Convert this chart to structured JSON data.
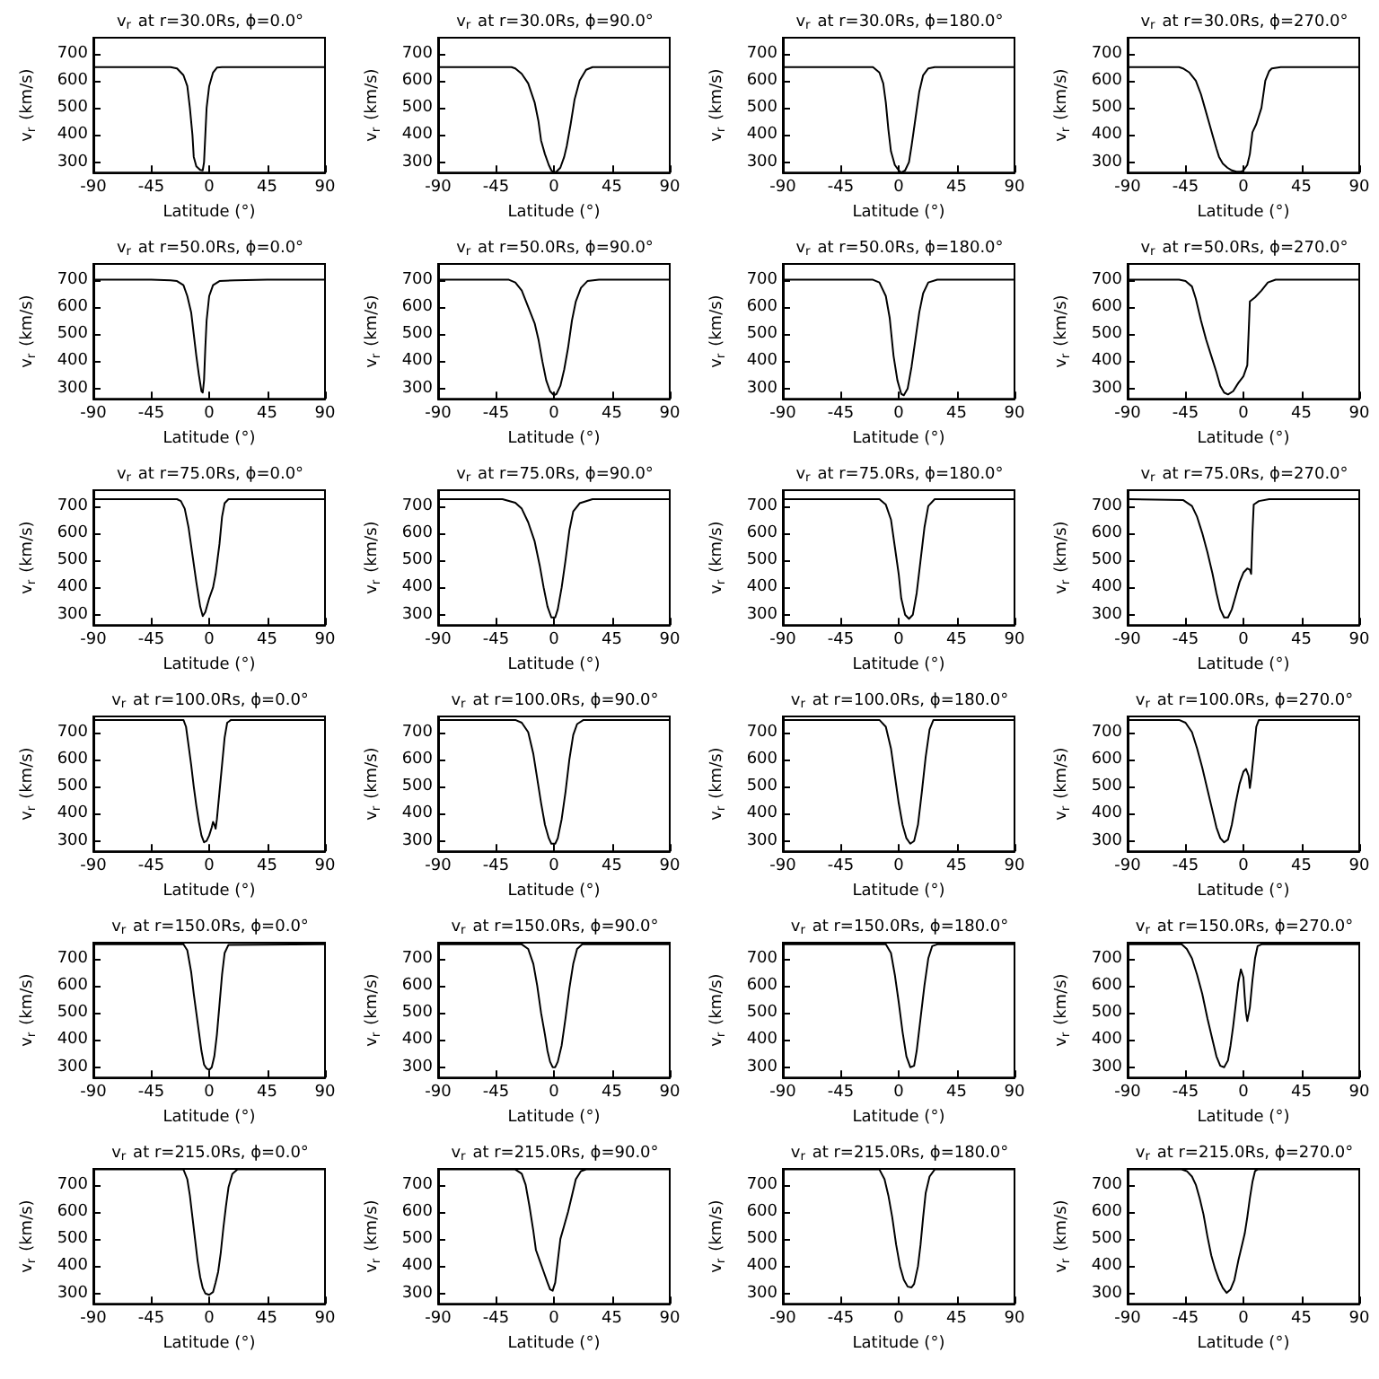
{
  "chart_data": [
    {
      "type": "line",
      "title": "v$_{r}$ at r=30.0Rs, ϕ=0.0°",
      "xlabel": "Latitude (°)",
      "ylabel": "v$_{r}$ (km/s)",
      "color": "#000000",
      "xlim": [
        -90,
        90
      ],
      "xticks": [
        -90,
        -45,
        0,
        45,
        90
      ],
      "ylim": [
        262,
        758
      ],
      "yticks": [
        300,
        400,
        500,
        600,
        700
      ],
      "x": [
        -90,
        -30,
        -25,
        -20,
        -17,
        -15,
        -13,
        -12,
        -10,
        -7,
        -5,
        -4,
        -3,
        -2,
        0,
        3,
        6,
        10,
        90
      ],
      "values": [
        650,
        650,
        645,
        620,
        580,
        500,
        400,
        320,
        285,
        272,
        270,
        300,
        400,
        500,
        580,
        630,
        648,
        650,
        650
      ]
    },
    {
      "type": "line",
      "title": "v$_{r}$ at r=30.0Rs, ϕ=90.0°",
      "xlabel": "Latitude (°)",
      "ylabel": "v$_{r}$ (km/s)",
      "color": "#000000",
      "xlim": [
        -90,
        90
      ],
      "xticks": [
        -90,
        -45,
        0,
        45,
        90
      ],
      "ylim": [
        262,
        758
      ],
      "yticks": [
        300,
        400,
        500,
        600,
        700
      ],
      "x": [
        -90,
        -33,
        -30,
        -25,
        -20,
        -15,
        -12,
        -10,
        -7,
        -4,
        -2,
        0,
        2,
        5,
        8,
        10,
        13,
        16,
        20,
        25,
        30,
        90
      ],
      "values": [
        650,
        650,
        645,
        625,
        590,
        520,
        450,
        380,
        330,
        290,
        270,
        262,
        265,
        280,
        320,
        360,
        440,
        530,
        600,
        640,
        650,
        650
      ]
    },
    {
      "type": "line",
      "title": "v$_{r}$ at r=30.0Rs, ϕ=180.0°",
      "xlabel": "Latitude (°)",
      "ylabel": "v$_{r}$ (km/s)",
      "color": "#000000",
      "xlim": [
        -90,
        90
      ],
      "xticks": [
        -90,
        -45,
        0,
        45,
        90
      ],
      "ylim": [
        262,
        758
      ],
      "yticks": [
        300,
        400,
        500,
        600,
        700
      ],
      "x": [
        -90,
        -20,
        -15,
        -12,
        -10,
        -8,
        -6,
        -3,
        0,
        2,
        5,
        8,
        10,
        13,
        16,
        19,
        23,
        28,
        90
      ],
      "values": [
        650,
        650,
        630,
        590,
        520,
        420,
        340,
        290,
        270,
        262,
        270,
        300,
        360,
        460,
        560,
        620,
        645,
        650,
        650
      ]
    },
    {
      "type": "line",
      "title": "v$_{r}$ at r=30.0Rs, ϕ=270.0°",
      "xlabel": "Latitude (°)",
      "ylabel": "v$_{r}$ (km/s)",
      "color": "#000000",
      "xlim": [
        -90,
        90
      ],
      "xticks": [
        -90,
        -45,
        0,
        45,
        90
      ],
      "ylim": [
        262,
        758
      ],
      "yticks": [
        300,
        400,
        500,
        600,
        700
      ],
      "x": [
        -90,
        -50,
        -47,
        -42,
        -37,
        -33,
        -30,
        -27,
        -24,
        -21,
        -19,
        -16,
        -12.5,
        -9,
        -5.5,
        -2,
        0,
        3,
        5,
        7,
        10,
        14,
        17,
        20,
        22,
        29,
        90
      ],
      "values": [
        650,
        650,
        645,
        630,
        600,
        550,
        500,
        450,
        400,
        350,
        320,
        295,
        280,
        270,
        265,
        265,
        270,
        290,
        330,
        410,
        440,
        500,
        600,
        635,
        645,
        650,
        650
      ]
    },
    {
      "type": "line",
      "title": "v$_{r}$ at r=50.0Rs, ϕ=0.0°",
      "xlabel": "Latitude (°)",
      "ylabel": "v$_{r}$ (km/s)",
      "color": "#000000",
      "xlim": [
        -90,
        90
      ],
      "xticks": [
        -90,
        -45,
        0,
        45,
        90
      ],
      "ylim": [
        262,
        758
      ],
      "yticks": [
        300,
        400,
        500,
        600,
        700
      ],
      "x": [
        -90,
        -45,
        -30,
        -25,
        -20,
        -17,
        -14,
        -12,
        -10,
        -8,
        -6,
        -5,
        -4,
        -3,
        -2,
        0,
        3,
        8,
        20,
        45,
        90
      ],
      "values": [
        700,
        700,
        698,
        695,
        680,
        640,
        580,
        500,
        420,
        350,
        290,
        285,
        330,
        450,
        550,
        640,
        680,
        695,
        698,
        700,
        700
      ]
    },
    {
      "type": "line",
      "title": "v$_{r}$ at r=50.0Rs, ϕ=90.0°",
      "xlabel": "Latitude (°)",
      "ylabel": "v$_{r}$ (km/s)",
      "color": "#000000",
      "xlim": [
        -90,
        90
      ],
      "xticks": [
        -90,
        -45,
        0,
        45,
        90
      ],
      "ylim": [
        262,
        758
      ],
      "yticks": [
        300,
        400,
        500,
        600,
        700
      ],
      "x": [
        -90,
        -35,
        -30,
        -25,
        -20,
        -15,
        -12,
        -9,
        -6,
        -3,
        0,
        2,
        5,
        8,
        11,
        14,
        17,
        21,
        26,
        35,
        90
      ],
      "values": [
        700,
        700,
        690,
        660,
        600,
        540,
        480,
        400,
        330,
        290,
        275,
        280,
        310,
        370,
        450,
        550,
        620,
        670,
        695,
        700,
        700
      ]
    },
    {
      "type": "line",
      "title": "v$_{r}$ at r=50.0Rs, ϕ=180.0°",
      "xlabel": "Latitude (°)",
      "ylabel": "v$_{r}$ (km/s)",
      "color": "#000000",
      "xlim": [
        -90,
        90
      ],
      "xticks": [
        -90,
        -45,
        0,
        45,
        90
      ],
      "ylim": [
        262,
        758
      ],
      "yticks": [
        300,
        400,
        500,
        600,
        700
      ],
      "x": [
        -90,
        -20,
        -15,
        -10,
        -7,
        -4,
        -1,
        2,
        4,
        7,
        10,
        13,
        16,
        19,
        23,
        30,
        90
      ],
      "values": [
        700,
        700,
        690,
        640,
        560,
        420,
        330,
        280,
        275,
        300,
        380,
        480,
        580,
        650,
        690,
        700,
        700
      ]
    },
    {
      "type": "line",
      "title": "v$_{r}$ at r=50.0Rs, ϕ=270.0°",
      "xlabel": "Latitude (°)",
      "ylabel": "v$_{r}$ (km/s)",
      "color": "#000000",
      "xlim": [
        -90,
        90
      ],
      "xticks": [
        -90,
        -45,
        0,
        45,
        90
      ],
      "ylim": [
        262,
        758
      ],
      "yticks": [
        300,
        400,
        500,
        600,
        700
      ],
      "x": [
        -90,
        -50,
        -45,
        -40,
        -37,
        -33,
        -29,
        -25,
        -21,
        -18,
        -15,
        -12,
        -8,
        -4,
        0,
        3,
        4,
        5,
        9,
        14,
        19,
        25,
        90
      ],
      "values": [
        700,
        700,
        695,
        675,
        630,
        550,
        480,
        420,
        360,
        310,
        285,
        278,
        290,
        320,
        345,
        385,
        500,
        620,
        635,
        660,
        690,
        700,
        700
      ]
    },
    {
      "type": "line",
      "title": "v$_{r}$ at r=75.0Rs, ϕ=0.0°",
      "xlabel": "Latitude (°)",
      "ylabel": "v$_{r}$ (km/s)",
      "color": "#000000",
      "xlim": [
        -90,
        90
      ],
      "xticks": [
        -90,
        -45,
        0,
        45,
        90
      ],
      "ylim": [
        262,
        758
      ],
      "yticks": [
        300,
        400,
        500,
        600,
        700
      ],
      "x": [
        -90,
        -25,
        -22,
        -19,
        -16,
        -13,
        -10,
        -7,
        -5,
        -3,
        0,
        3,
        5,
        8,
        10,
        12,
        15,
        90
      ],
      "values": [
        725,
        725,
        718,
        690,
        620,
        520,
        420,
        330,
        295,
        310,
        360,
        400,
        450,
        560,
        660,
        710,
        725,
        725
      ]
    },
    {
      "type": "line",
      "title": "v$_{r}$ at r=75.0Rs, ϕ=90.0°",
      "xlabel": "Latitude (°)",
      "ylabel": "v$_{r}$ (km/s)",
      "color": "#000000",
      "xlim": [
        -90,
        90
      ],
      "xticks": [
        -90,
        -45,
        0,
        45,
        90
      ],
      "ylim": [
        262,
        758
      ],
      "yticks": [
        300,
        400,
        500,
        600,
        700
      ],
      "x": [
        -90,
        -40,
        -30,
        -25,
        -20,
        -15,
        -11,
        -8,
        -5,
        -2,
        1,
        3,
        6,
        9,
        12,
        15,
        20,
        30,
        90
      ],
      "values": [
        725,
        725,
        712,
        690,
        640,
        570,
        480,
        400,
        330,
        290,
        290,
        320,
        400,
        500,
        610,
        680,
        710,
        725,
        725
      ]
    },
    {
      "type": "line",
      "title": "v$_{r}$ at r=75.0Rs, ϕ=180.0°",
      "xlabel": "Latitude (°)",
      "ylabel": "v$_{r}$ (km/s)",
      "color": "#000000",
      "xlim": [
        -90,
        90
      ],
      "xticks": [
        -90,
        -45,
        0,
        45,
        90
      ],
      "ylim": [
        262,
        758
      ],
      "yticks": [
        300,
        400,
        500,
        600,
        700
      ],
      "x": [
        -90,
        -15,
        -10,
        -6,
        -3,
        0,
        2,
        5,
        8,
        11,
        14,
        17,
        20,
        23,
        28,
        90
      ],
      "values": [
        725,
        725,
        705,
        650,
        550,
        450,
        360,
        300,
        285,
        300,
        380,
        500,
        620,
        700,
        725,
        725
      ]
    },
    {
      "type": "line",
      "title": "v$_{r}$ at r=75.0Rs, ϕ=270.0°",
      "xlabel": "Latitude (°)",
      "ylabel": "v$_{r}$ (km/s)",
      "color": "#000000",
      "xlim": [
        -90,
        90
      ],
      "xticks": [
        -90,
        -45,
        0,
        45,
        90
      ],
      "ylim": [
        262,
        758
      ],
      "yticks": [
        300,
        400,
        500,
        600,
        700
      ],
      "x": [
        -90,
        -47,
        -40,
        -36,
        -32,
        -28,
        -24,
        -21,
        -18,
        -15,
        -12,
        -9,
        -6,
        -3,
        0,
        3,
        5,
        6,
        7,
        8,
        12,
        20,
        90
      ],
      "values": [
        725,
        722,
        700,
        660,
        600,
        530,
        450,
        380,
        320,
        290,
        290,
        320,
        370,
        420,
        455,
        470,
        465,
        450,
        600,
        705,
        718,
        725,
        725
      ]
    },
    {
      "type": "line",
      "title": "v$_{r}$ at r=100.0Rs, ϕ=0.0°",
      "xlabel": "Latitude (°)",
      "ylabel": "v$_{r}$ (km/s)",
      "color": "#000000",
      "xlim": [
        -90,
        90
      ],
      "xticks": [
        -90,
        -45,
        0,
        45,
        90
      ],
      "ylim": [
        262,
        758
      ],
      "yticks": [
        300,
        400,
        500,
        600,
        700
      ],
      "x": [
        -90,
        -20,
        -18,
        -16,
        -14,
        -12,
        -10,
        -8,
        -6,
        -4,
        -2,
        0,
        2,
        3,
        4,
        5,
        6,
        8,
        10,
        12,
        14,
        17,
        90
      ],
      "values": [
        745,
        745,
        720,
        650,
        580,
        500,
        430,
        370,
        320,
        295,
        300,
        320,
        350,
        370,
        360,
        345,
        380,
        480,
        580,
        680,
        735,
        745,
        745
      ]
    },
    {
      "type": "line",
      "title": "v$_{r}$ at r=100.0Rs, ϕ=90.0°",
      "xlabel": "Latitude (°)",
      "ylabel": "v$_{r}$ (km/s)",
      "color": "#000000",
      "xlim": [
        -90,
        90
      ],
      "xticks": [
        -90,
        -45,
        0,
        45,
        90
      ],
      "ylim": [
        262,
        758
      ],
      "yticks": [
        300,
        400,
        500,
        600,
        700
      ],
      "x": [
        -90,
        -30,
        -25,
        -20,
        -16,
        -13,
        -10,
        -7,
        -4,
        -2,
        1,
        3,
        6,
        9,
        12,
        15,
        18,
        23,
        90
      ],
      "values": [
        745,
        745,
        735,
        700,
        620,
        530,
        440,
        360,
        310,
        290,
        290,
        310,
        380,
        480,
        600,
        690,
        730,
        745,
        745
      ]
    },
    {
      "type": "line",
      "title": "v$_{r}$ at r=100.0Rs, ϕ=180.0°",
      "xlabel": "Latitude (°)",
      "ylabel": "v$_{r}$ (km/s)",
      "color": "#000000",
      "xlim": [
        -90,
        90
      ],
      "xticks": [
        -90,
        -45,
        0,
        45,
        90
      ],
      "ylim": [
        262,
        758
      ],
      "yticks": [
        300,
        400,
        500,
        600,
        700
      ],
      "x": [
        -90,
        -15,
        -10,
        -6,
        -3,
        0,
        3,
        6,
        9,
        12,
        15,
        18,
        21,
        24,
        27,
        90
      ],
      "values": [
        745,
        745,
        720,
        640,
        540,
        440,
        360,
        310,
        290,
        300,
        360,
        480,
        610,
        710,
        745,
        745
      ]
    },
    {
      "type": "line",
      "title": "v$_{r}$ at r=100.0Rs, ϕ=270.0°",
      "xlabel": "Latitude (°)",
      "ylabel": "v$_{r}$ (km/s)",
      "color": "#000000",
      "xlim": [
        -90,
        90
      ],
      "xticks": [
        -90,
        -45,
        0,
        45,
        90
      ],
      "ylim": [
        262,
        758
      ],
      "yticks": [
        300,
        400,
        500,
        600,
        700
      ],
      "x": [
        -90,
        -50,
        -45,
        -40,
        -36,
        -32,
        -28,
        -24,
        -21,
        -18,
        -15,
        -12,
        -9,
        -6,
        -3,
        0,
        2,
        4,
        5,
        6,
        8,
        10,
        12,
        90
      ],
      "values": [
        745,
        745,
        735,
        700,
        640,
        570,
        490,
        410,
        350,
        310,
        295,
        305,
        360,
        440,
        510,
        555,
        565,
        540,
        495,
        530,
        620,
        720,
        745,
        745
      ]
    },
    {
      "type": "line",
      "title": "v$_{r}$ at r=150.0Rs, ϕ=0.0°",
      "xlabel": "Latitude (°)",
      "ylabel": "v$_{r}$ (km/s)",
      "color": "#000000",
      "xlim": [
        -90,
        90
      ],
      "xticks": [
        -90,
        -45,
        0,
        45,
        90
      ],
      "ylim": [
        262,
        758
      ],
      "yticks": [
        300,
        400,
        500,
        600,
        700
      ],
      "x": [
        -90,
        -20,
        -17,
        -14,
        -12,
        -10,
        -8,
        -6,
        -4,
        -2,
        0,
        2,
        4,
        6,
        8,
        10,
        12,
        15,
        90
      ],
      "values": [
        752,
        752,
        730,
        650,
        570,
        500,
        430,
        360,
        310,
        295,
        290,
        300,
        340,
        420,
        530,
        640,
        720,
        750,
        752
      ]
    },
    {
      "type": "line",
      "title": "v$_{r}$ at r=150.0Rs, ϕ=90.0°",
      "xlabel": "Latitude (°)",
      "ylabel": "v$_{r}$ (km/s)",
      "color": "#000000",
      "xlim": [
        -90,
        90
      ],
      "xticks": [
        -90,
        -45,
        0,
        45,
        90
      ],
      "ylim": [
        262,
        758
      ],
      "yticks": [
        300,
        400,
        500,
        600,
        700
      ],
      "x": [
        -90,
        -25,
        -20,
        -16,
        -13,
        -10,
        -7,
        -5,
        -3,
        -1,
        1,
        3,
        6,
        9,
        12,
        15,
        18,
        22,
        90
      ],
      "values": [
        752,
        752,
        735,
        680,
        600,
        500,
        420,
        360,
        320,
        300,
        300,
        320,
        380,
        480,
        590,
        680,
        735,
        752,
        752
      ]
    },
    {
      "type": "line",
      "title": "v$_{r}$ at r=150.0Rs, ϕ=180.0°",
      "xlabel": "Latitude (°)",
      "ylabel": "v$_{r}$ (km/s)",
      "color": "#000000",
      "xlim": [
        -90,
        90
      ],
      "xticks": [
        -90,
        -45,
        0,
        45,
        90
      ],
      "ylim": [
        262,
        758
      ],
      "yticks": [
        300,
        400,
        500,
        600,
        700
      ],
      "x": [
        -90,
        -10,
        -6,
        -3,
        0,
        3,
        6,
        9,
        12,
        14,
        17,
        20,
        23,
        26,
        30,
        90
      ],
      "values": [
        752,
        752,
        720,
        640,
        540,
        430,
        340,
        300,
        305,
        360,
        480,
        600,
        700,
        745,
        752,
        752
      ]
    },
    {
      "type": "line",
      "title": "v$_{r}$ at r=150.0Rs, ϕ=270.0°",
      "xlabel": "Latitude (°)",
      "ylabel": "v$_{r}$ (km/s)",
      "color": "#000000",
      "xlim": [
        -90,
        90
      ],
      "xticks": [
        -90,
        -45,
        0,
        45,
        90
      ],
      "ylim": [
        262,
        758
      ],
      "yticks": [
        300,
        400,
        500,
        600,
        700
      ],
      "x": [
        -90,
        -48,
        -44,
        -40,
        -36,
        -32,
        -28,
        -24,
        -21,
        -18,
        -15,
        -12,
        -10,
        -8,
        -6,
        -4,
        -2,
        0,
        1,
        2,
        3,
        5,
        7,
        9,
        11,
        14,
        90
      ],
      "values": [
        752,
        752,
        735,
        700,
        640,
        570,
        480,
        400,
        340,
        305,
        300,
        325,
        380,
        450,
        530,
        610,
        660,
        630,
        560,
        500,
        470,
        520,
        620,
        700,
        745,
        752,
        752
      ]
    },
    {
      "type": "line",
      "title": "v$_{r}$ at r=215.0Rs, ϕ=0.0°",
      "xlabel": "Latitude (°)",
      "ylabel": "v$_{r}$ (km/s)",
      "color": "#000000",
      "xlim": [
        -90,
        90
      ],
      "xticks": [
        -90,
        -45,
        0,
        45,
        90
      ],
      "ylim": [
        262,
        758
      ],
      "yticks": [
        300,
        400,
        500,
        600,
        700
      ],
      "x": [
        -90,
        -20,
        -17,
        -15,
        -13,
        -11,
        -9,
        -7,
        -5,
        -3,
        0,
        3,
        5,
        7,
        9,
        11,
        13,
        15,
        18,
        22,
        90
      ],
      "values": [
        756,
        756,
        720,
        660,
        580,
        500,
        420,
        360,
        320,
        300,
        295,
        305,
        340,
        380,
        450,
        540,
        620,
        690,
        740,
        756,
        756
      ]
    },
    {
      "type": "line",
      "title": "v$_{r}$ at r=215.0Rs, ϕ=90.0°",
      "xlabel": "Latitude (°)",
      "ylabel": "v$_{r}$ (km/s)",
      "color": "#000000",
      "xlim": [
        -90,
        90
      ],
      "xticks": [
        -90,
        -45,
        0,
        45,
        90
      ],
      "ylim": [
        262,
        758
      ],
      "yticks": [
        300,
        400,
        500,
        600,
        700
      ],
      "x": [
        -90,
        -30,
        -25,
        -22,
        -19,
        -16,
        -14,
        -11,
        -8,
        -5,
        -3,
        -1,
        1,
        3,
        5,
        8,
        11,
        14,
        17,
        21,
        25,
        90
      ],
      "values": [
        756,
        756,
        740,
        700,
        620,
        530,
        460,
        420,
        380,
        340,
        315,
        310,
        340,
        420,
        500,
        550,
        600,
        660,
        720,
        750,
        756,
        756
      ]
    },
    {
      "type": "line",
      "title": "v$_{r}$ at r=215.0Rs, ϕ=180.0°",
      "xlabel": "Latitude (°)",
      "ylabel": "v$_{r}$ (km/s)",
      "color": "#000000",
      "xlim": [
        -90,
        90
      ],
      "xticks": [
        -90,
        -45,
        0,
        45,
        90
      ],
      "ylim": [
        262,
        758
      ],
      "yticks": [
        300,
        400,
        500,
        600,
        700
      ],
      "x": [
        -90,
        -15,
        -11,
        -8,
        -5,
        -2,
        1,
        4,
        7,
        10,
        12,
        15,
        17,
        19,
        21,
        24,
        28,
        90
      ],
      "values": [
        756,
        756,
        720,
        660,
        580,
        480,
        400,
        350,
        325,
        322,
        335,
        400,
        480,
        580,
        670,
        730,
        756,
        756
      ]
    },
    {
      "type": "line",
      "title": "v$_{r}$ at r=215.0Rs, ϕ=270.0°",
      "xlabel": "Latitude (°)",
      "ylabel": "v$_{r}$ (km/s)",
      "color": "#000000",
      "xlim": [
        -90,
        90
      ],
      "xticks": [
        -90,
        -45,
        0,
        45,
        90
      ],
      "ylim": [
        262,
        758
      ],
      "yticks": [
        300,
        400,
        500,
        600,
        700
      ],
      "x": [
        -90,
        -48,
        -44,
        -40,
        -37,
        -34,
        -31,
        -28,
        -25,
        -22,
        -19,
        -16,
        -13,
        -10,
        -7,
        -4,
        -1,
        1,
        3,
        5,
        7,
        9,
        11,
        90
      ],
      "values": [
        756,
        756,
        750,
        730,
        700,
        650,
        590,
        510,
        440,
        390,
        350,
        320,
        302,
        315,
        350,
        420,
        480,
        520,
        580,
        650,
        710,
        750,
        756,
        756
      ]
    }
  ]
}
